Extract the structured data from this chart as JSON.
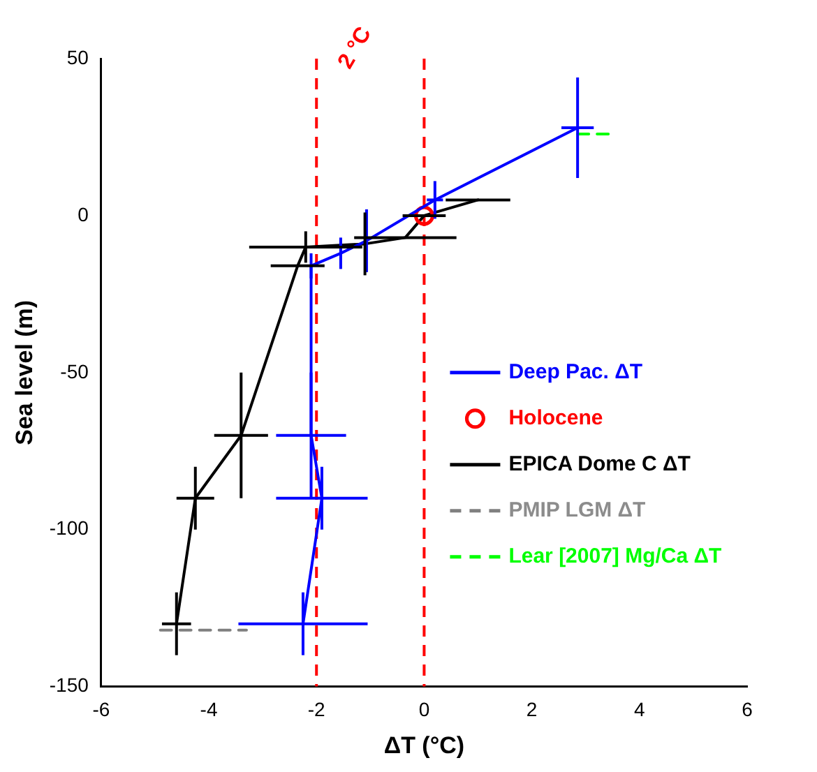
{
  "chart_data": {
    "type": "line",
    "xlabel": "ΔT (°C)",
    "ylabel": "Sea level (m)",
    "xlim": [
      -6,
      6
    ],
    "xticks": [
      -6,
      -4,
      -2,
      0,
      2,
      4,
      6
    ],
    "ylim": [
      -150,
      50
    ],
    "yticks": [
      -150,
      -100,
      -50,
      0,
      50
    ],
    "grid": false,
    "legend": "center right",
    "marker": "none",
    "line_style": "solid",
    "ref_lines": [
      {
        "axis": "x",
        "value": -2,
        "label": "2 °C",
        "color": "#ff0000",
        "line_style": "dashed"
      },
      {
        "axis": "x",
        "value": 0,
        "label": null,
        "color": "#ff0000",
        "line_style": "dashed"
      }
    ],
    "series": [
      {
        "name": "Deep Pac. ΔT",
        "color": "#0000ff",
        "x": [
          2.85,
          0.2,
          -1.07,
          -1.55,
          -2.1,
          -2.1,
          -1.9,
          -2.25
        ],
        "values": [
          28,
          5,
          -8,
          -12,
          -16,
          -70,
          -90,
          -130
        ],
        "errors": [
          16,
          6,
          10,
          5,
          4,
          20,
          10,
          10
        ],
        "xerrors": [
          0.3,
          0.15,
          null,
          null,
          null,
          0.65,
          0.85,
          1.2
        ]
      },
      {
        "name": "Holocene",
        "type": "scatter",
        "marker": "circle",
        "color": "#ff0000",
        "x": [
          0
        ],
        "values": [
          0
        ]
      },
      {
        "name": "EPICA Dome C ΔT",
        "color": "#000000",
        "x": [
          1.0,
          0.0,
          -0.35,
          -1.1,
          -2.2,
          -2.35,
          -3.4,
          -4.25,
          -4.6
        ],
        "values": [
          5,
          0,
          -7,
          -9,
          -10,
          -16,
          -70,
          -90,
          -130
        ],
        "errors": [
          null,
          null,
          null,
          10,
          5,
          null,
          20,
          10,
          10
        ],
        "xerrors": [
          0.6,
          0.4,
          0.95,
          null,
          1.05,
          0.5,
          0.5,
          0.35,
          0.27
        ]
      },
      {
        "name": "PMIP LGM ΔT",
        "line_style": "dashed",
        "color": "#808080",
        "x": [
          -4.9,
          -3.3
        ],
        "values": [
          -132,
          -132
        ]
      },
      {
        "name": "Lear [2007] Mg/Ca ΔT",
        "line_style": "dashed",
        "color": "#00ff00",
        "x": [
          2.85,
          3.5
        ],
        "values": [
          26,
          26
        ]
      }
    ]
  }
}
